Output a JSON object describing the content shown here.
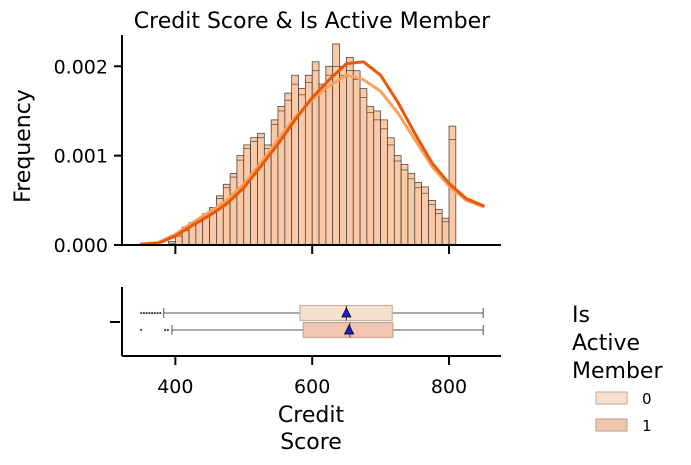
{
  "chart_data": {
    "type": "histogram",
    "title": "Credit Score & Is Active Member",
    "xlabel": "Credit\nScore",
    "ylabel": "Frequency",
    "xlim": [
      322,
      876
    ],
    "ylim": [
      0,
      0.00235
    ],
    "xticks": [
      400,
      600,
      800
    ],
    "xtick_labels": [
      "400",
      "600",
      "800"
    ],
    "yticks": [
      0,
      0.001,
      0.002
    ],
    "ytick_labels": [
      "0.000",
      "0.001",
      "0.002"
    ],
    "bin_start": 350,
    "bin_width": 10,
    "histogram": {
      "overlay_colors": [
        "#fbc9a5",
        "#f6c1a0"
      ],
      "edge_color": "#333333",
      "counts": [
        0.0,
        0.0,
        0.0,
        0.0,
        4e-05,
        0.00013,
        0.0002,
        0.00025,
        0.00028,
        0.00035,
        0.00042,
        0.00055,
        0.00068,
        0.0008,
        0.001,
        0.00112,
        0.0012,
        0.00125,
        0.00112,
        0.0014,
        0.00155,
        0.0017,
        0.0019,
        0.00175,
        0.0019,
        0.00205,
        0.0018,
        0.002,
        0.00225,
        0.002,
        0.0021,
        0.00195,
        0.00175,
        0.00155,
        0.0015,
        0.0014,
        0.0012,
        0.001,
        0.0009,
        0.0008,
        0.0007,
        0.00065,
        0.0005,
        0.0004,
        0.0003,
        0.00133
      ],
      "inner_tops": [
        0.0,
        0.0,
        0.0,
        0.0,
        2e-05,
        0.0001,
        0.00016,
        0.00022,
        0.00026,
        0.00032,
        0.0004,
        0.00052,
        0.00064,
        0.00076,
        0.00095,
        0.00108,
        0.00116,
        0.0012,
        0.00108,
        0.00135,
        0.0015,
        0.00162,
        0.0018,
        0.00168,
        0.00182,
        0.00195,
        0.00172,
        0.0019,
        0.002,
        0.0019,
        0.00195,
        0.00185,
        0.00165,
        0.00148,
        0.0014,
        0.0013,
        0.00112,
        0.00094,
        0.00084,
        0.00074,
        0.00064,
        0.00058,
        0.00045,
        0.00035,
        0.00026,
        0.00118
      ]
    },
    "kde": [
      {
        "name": "0",
        "color": "#f7a25f",
        "x": [
          350,
          375,
          400,
          425,
          450,
          475,
          500,
          525,
          550,
          575,
          600,
          625,
          650,
          675,
          700,
          725,
          750,
          775,
          800,
          825,
          850
        ],
        "y": [
          1e-05,
          3e-05,
          0.00012,
          0.00025,
          0.00037,
          0.0005,
          0.00068,
          0.00092,
          0.00118,
          0.00143,
          0.00163,
          0.00178,
          0.0019,
          0.00185,
          0.00172,
          0.00148,
          0.00118,
          0.00088,
          0.00066,
          0.0005,
          0.00043
        ]
      },
      {
        "name": "1",
        "color": "#e8590c",
        "x": [
          350,
          375,
          400,
          425,
          450,
          475,
          500,
          525,
          550,
          575,
          600,
          625,
          650,
          675,
          700,
          725,
          750,
          775,
          800,
          825,
          850
        ],
        "y": [
          1e-05,
          2e-05,
          0.0001,
          0.00022,
          0.00033,
          0.00046,
          0.00064,
          0.00088,
          0.00113,
          0.0014,
          0.00165,
          0.00185,
          0.00203,
          0.00205,
          0.0019,
          0.0016,
          0.00125,
          0.00092,
          0.00069,
          0.00052,
          0.00044
        ]
      }
    ],
    "boxplot": {
      "series": [
        {
          "name": "0",
          "color": "#f6e0cf",
          "edge": "#c9b3a3",
          "whisker_low": 383,
          "q1": 582,
          "median": 650,
          "mean": 650,
          "q3": 717,
          "whisker_high": 850,
          "outliers": [
            350,
            354,
            358,
            362,
            366,
            370,
            374,
            378
          ]
        },
        {
          "name": "1",
          "color": "#f0c6b1",
          "edge": "#c9a595",
          "whisker_low": 395,
          "q1": 587,
          "median": 655,
          "mean": 654,
          "q3": 718,
          "whisker_high": 850,
          "outliers": [
            350,
            385,
            389
          ]
        }
      ],
      "mean_marker_color": "#1f1fd6"
    },
    "legend": {
      "title": "Is\nActive\nMember",
      "placement": "right",
      "entries": [
        {
          "label": "0",
          "color": "#f6e0cf"
        },
        {
          "label": "1",
          "color": "#f0c6b1"
        }
      ]
    }
  }
}
